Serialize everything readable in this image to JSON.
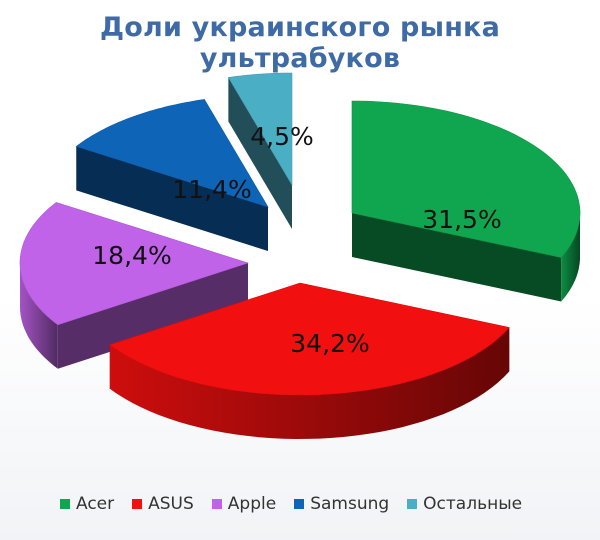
{
  "chart_data": {
    "type": "pie",
    "title": "Доли украинского рынка ультрабуков",
    "categories": [
      "Acer",
      "ASUS",
      "Apple",
      "Samsung",
      "Остальные"
    ],
    "values": [
      31.5,
      34.2,
      18.4,
      11.4,
      4.5
    ],
    "data_labels": [
      "31,5%",
      "34,2%",
      "18,4%",
      "11,4%",
      "4,5%"
    ],
    "colors": [
      "#0fa64f",
      "#f20f0f",
      "#c163e8",
      "#0e65b8",
      "#4aaec5"
    ],
    "exploded": true,
    "three_d": true,
    "legend_position": "bottom"
  }
}
